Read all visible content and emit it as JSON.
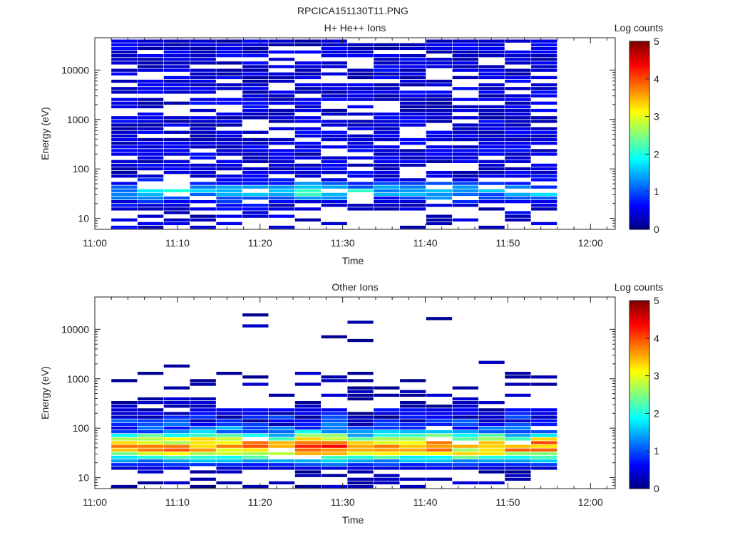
{
  "figure_title": "RPCICA151130T11.PNG",
  "colors": {
    "axis": "#222222",
    "background": "#ffffff",
    "colormap": "jet"
  },
  "chart_data": [
    {
      "type": "heatmap",
      "title": "H+ He++ Ions",
      "xlabel": "Time",
      "ylabel": "Energy (eV)",
      "colorbar_label": "Log counts",
      "x_ticks": [
        "11:00",
        "11:10",
        "11:20",
        "11:30",
        "11:40",
        "11:50",
        "12:00"
      ],
      "x_range": [
        "11:00",
        "12:03"
      ],
      "y_scale": "log",
      "y_ticks": [
        10,
        100,
        1000,
        10000
      ],
      "y_tick_labels": [
        "10",
        "100",
        "1000",
        "10000"
      ],
      "y_range": [
        6,
        45000
      ],
      "colorbar_range": [
        0,
        5
      ],
      "colorbar_ticks": [
        "0",
        "1",
        "2",
        "3",
        "4",
        "5"
      ],
      "data_time_range": [
        "11:02",
        "11:56"
      ],
      "time_bins": 17,
      "energy_bins": 52,
      "typical_log_counts_range": [
        0,
        2.5
      ],
      "peak_log_counts": 2.5,
      "peak_energy_eV": 35,
      "peak_time": "11:27"
    },
    {
      "type": "heatmap",
      "title": "Other Ions",
      "xlabel": "Time",
      "ylabel": "Energy (eV)",
      "colorbar_label": "Log counts",
      "x_ticks": [
        "11:00",
        "11:10",
        "11:20",
        "11:30",
        "11:40",
        "11:50",
        "12:00"
      ],
      "x_range": [
        "11:00",
        "12:03"
      ],
      "y_scale": "log",
      "y_ticks": [
        10,
        100,
        1000,
        10000
      ],
      "y_tick_labels": [
        "10",
        "100",
        "1000",
        "10000"
      ],
      "y_range": [
        6,
        45000
      ],
      "colorbar_range": [
        0,
        5
      ],
      "colorbar_ticks": [
        "0",
        "1",
        "2",
        "3",
        "4",
        "5"
      ],
      "data_time_range": [
        "11:02",
        "11:56"
      ],
      "time_bins": 17,
      "energy_bins": 52,
      "typical_log_counts_range": [
        0,
        4.4
      ],
      "peak_log_counts": 4.4,
      "peak_energy_eV": 40,
      "peak_time": "11:27"
    }
  ]
}
